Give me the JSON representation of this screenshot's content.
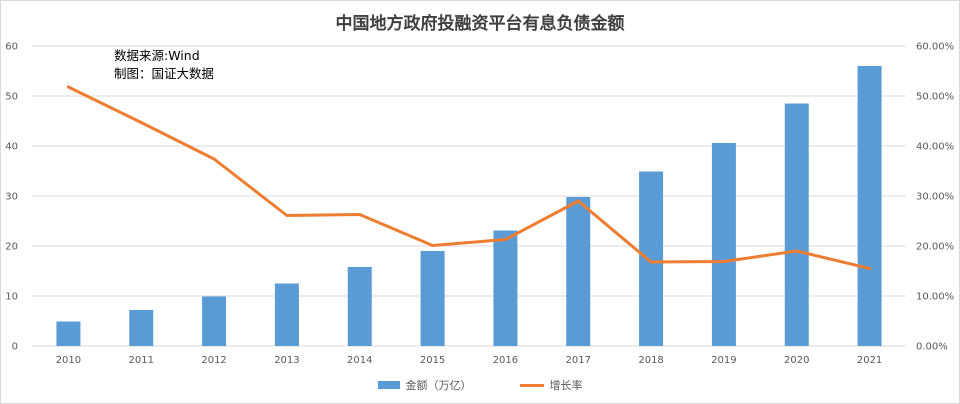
{
  "chart_data": {
    "type": "bar",
    "title": "中国地方政府投融资平台有息负债金额",
    "annotations": [
      "数据来源:Wind",
      "制图：国证大数据"
    ],
    "categories": [
      "2010",
      "2011",
      "2012",
      "2013",
      "2014",
      "2015",
      "2016",
      "2017",
      "2018",
      "2019",
      "2020",
      "2021"
    ],
    "series": [
      {
        "name": "金额（万亿）",
        "type": "bar",
        "axis": "left",
        "color": "#5b9bd5",
        "values": [
          4.9,
          7.2,
          9.9,
          12.5,
          15.8,
          19.0,
          23.1,
          29.8,
          34.9,
          40.6,
          48.5,
          56.0
        ]
      },
      {
        "name": "增长率",
        "type": "line",
        "axis": "right",
        "color": "#ed7d31",
        "values": [
          0.518,
          0.447,
          0.374,
          0.261,
          0.263,
          0.201,
          0.213,
          0.29,
          0.168,
          0.169,
          0.19,
          0.155
        ]
      }
    ],
    "yleft": {
      "lim": [
        0,
        60
      ],
      "ticks": [
        "0",
        "10",
        "20",
        "30",
        "40",
        "50",
        "60"
      ]
    },
    "yright": {
      "lim": [
        0,
        0.6
      ],
      "ticks": [
        "0.00%",
        "10.00%",
        "20.00%",
        "30.00%",
        "40.00%",
        "50.00%",
        "60.00%"
      ]
    },
    "grid": true,
    "legend_position": "bottom"
  }
}
